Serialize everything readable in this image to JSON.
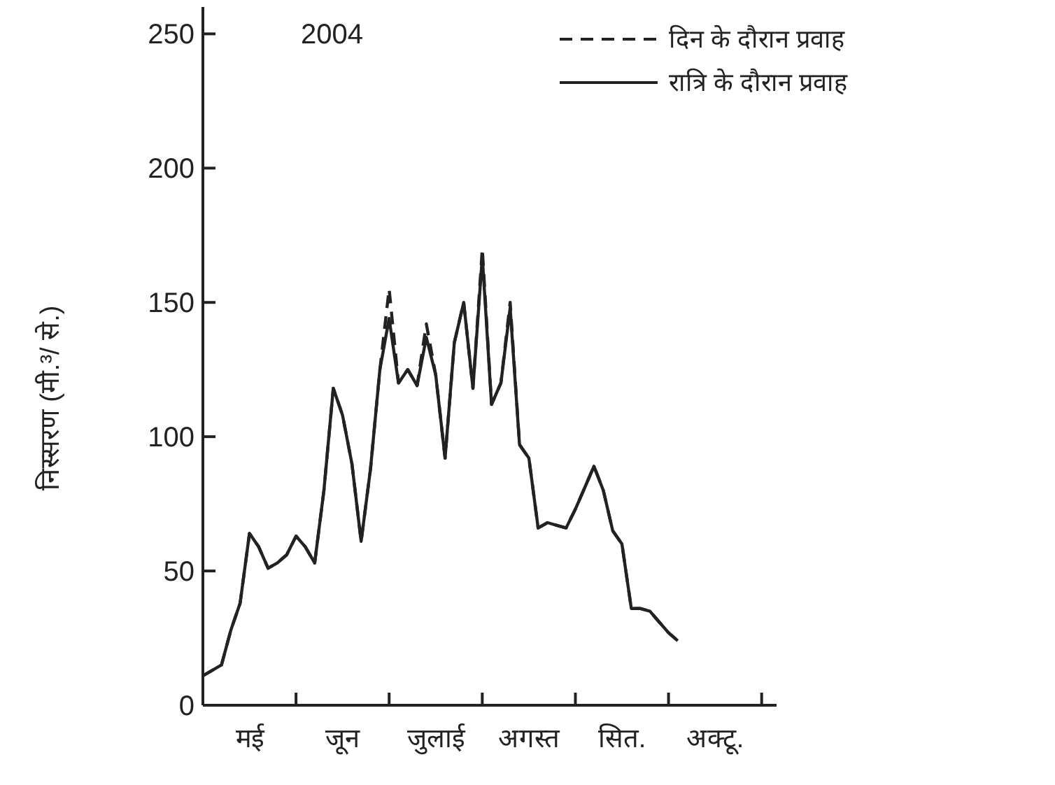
{
  "chart_data": {
    "type": "line",
    "title": "2004",
    "ylabel": "निस्सरण (मी.³/ से.)",
    "categories": [
      null,
      null,
      null,
      null,
      null,
      "मई",
      null,
      null,
      null,
      null,
      null,
      null,
      null,
      null,
      null,
      "जून",
      null,
      null,
      null,
      null,
      null,
      null,
      null,
      null,
      null,
      "जुलाई",
      null,
      null,
      null,
      null,
      null,
      null,
      null,
      null,
      null,
      "अगस्त",
      null,
      null,
      null,
      null,
      null,
      null,
      null,
      null,
      null,
      "सित.",
      null,
      null,
      null,
      null,
      null,
      null,
      null,
      null,
      null,
      "अक्टू.",
      null,
      null,
      null,
      null,
      null,
      null
    ],
    "series": [
      {
        "name": "दिन के दौरान प्रवाह",
        "color": "#222222",
        "line_style": "dashed",
        "values": [
          11,
          13,
          15,
          28,
          38,
          64,
          59,
          51,
          53,
          56,
          63,
          59,
          53,
          80,
          118,
          108,
          90,
          61,
          88,
          125,
          155,
          120,
          125,
          119,
          142,
          123,
          92,
          135,
          150,
          118,
          170,
          112,
          120,
          150,
          97,
          92,
          66,
          68,
          67,
          66,
          73,
          81,
          89,
          80,
          65,
          60,
          36,
          36,
          35,
          31,
          27,
          24,
          null,
          null,
          null,
          null,
          null,
          null,
          null,
          null,
          null,
          null
        ]
      },
      {
        "name": "रात्रि के दौरान प्रवाह",
        "color": "#222222",
        "line_style": "solid",
        "values": [
          11,
          13,
          15,
          28,
          38,
          64,
          59,
          51,
          53,
          56,
          63,
          59,
          53,
          80,
          118,
          108,
          90,
          61,
          88,
          125,
          144,
          120,
          125,
          119,
          137,
          123,
          92,
          135,
          150,
          118,
          167,
          112,
          120,
          148,
          97,
          92,
          66,
          68,
          67,
          66,
          73,
          81,
          89,
          80,
          65,
          60,
          36,
          36,
          35,
          31,
          27,
          24,
          null,
          null,
          null,
          null,
          null,
          null,
          null,
          null,
          null,
          null
        ]
      }
    ],
    "ylim": [
      0,
      260
    ],
    "yticks": [
      0,
      50,
      100,
      150,
      200,
      250
    ],
    "legend": "top right"
  }
}
